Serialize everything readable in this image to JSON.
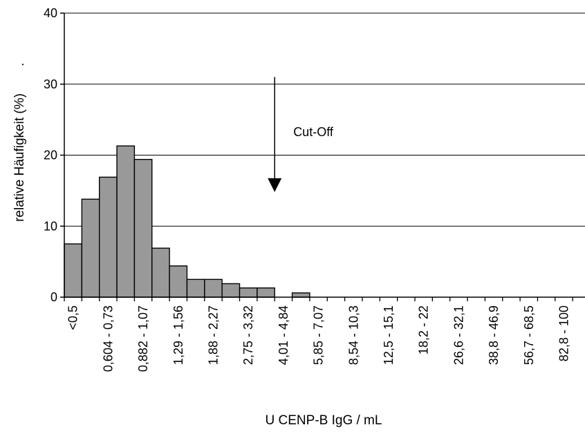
{
  "chart_data": {
    "type": "bar",
    "title": "",
    "xlabel": "U  CENP-B  IgG / mL",
    "ylabel": "relative Häufigkeit (%)",
    "ylabel_suffix": ".",
    "ylim": [
      0,
      40
    ],
    "yticks": [
      0,
      10,
      20,
      30,
      40
    ],
    "grid": true,
    "categories": [
      "<0,5",
      "",
      "0,604 - 0,73",
      "",
      "0,882 - 1,07",
      "",
      "1,29 - 1,56",
      "",
      "1,88 - 2,27",
      "",
      "2,75 - 3,32",
      "",
      "4,01 - 4,84",
      "",
      "5,85 - 7,07",
      "",
      "8,54 - 10,3",
      "",
      "12,5 - 15,1",
      "",
      "18,2 - 22",
      "",
      "26,6 - 32,1",
      "",
      "38,8 - 46,9",
      "",
      "56,7 - 68,5",
      "",
      "82,8 - 100"
    ],
    "values": [
      7.5,
      13.8,
      16.9,
      21.3,
      19.4,
      6.9,
      4.4,
      2.5,
      2.5,
      1.9,
      1.3,
      1.3,
      0,
      0.6,
      0,
      0,
      0,
      0,
      0,
      0,
      0,
      0,
      0,
      0,
      0,
      0,
      0,
      0,
      0
    ],
    "annotation": {
      "text": "Cut-Off",
      "arrow_category_index": 12,
      "arrow_from_value": 31,
      "arrow_to_value": 14.8
    },
    "colors": {
      "bar": "#999999",
      "bar_edge": "#000000",
      "grid": "#000000"
    }
  }
}
